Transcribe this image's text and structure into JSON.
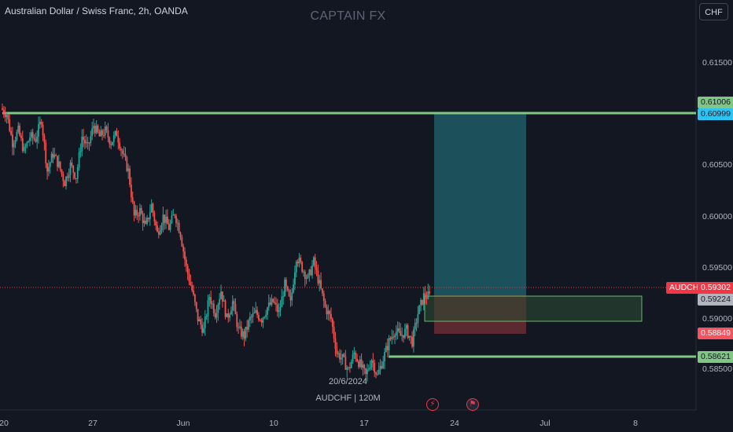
{
  "header": {
    "symbol_title": "Australian Dollar / Swiss Franc, 2h, OANDA",
    "watermark": "CAPTAIN FX",
    "currency_button": "CHF"
  },
  "price_axis": {
    "labels": [
      "0.61500",
      "0.60500",
      "0.60000",
      "0.59500",
      "0.59000",
      "0.58500"
    ],
    "values": [
      0.615,
      0.605,
      0.6,
      0.595,
      0.59,
      0.585
    ]
  },
  "price_tags": {
    "top_line_upper": "0.61006",
    "top_line_lower": "0.60999",
    "symbol": "AUDCHF",
    "last_price": "0.59302",
    "entry": "0.59224",
    "stop": "0.58849",
    "bottom_line": "0.58621"
  },
  "price_tag_values": {
    "top_line_upper": 0.61006,
    "top_line_lower": 0.60999,
    "last_price": 0.59302,
    "entry": 0.59224,
    "stop": 0.58849,
    "bottom_line": 0.58621
  },
  "time_axis": {
    "labels": [
      "20",
      "27",
      "Jun",
      "10",
      "17",
      "24",
      "Jul",
      "8"
    ]
  },
  "cursor_info": {
    "date": "20/6/2024",
    "symbol_interval": "AUDCHF | 120M"
  },
  "events": {
    "icons": [
      "lightning-icon",
      "flag-icon"
    ]
  },
  "colors": {
    "background": "#131722",
    "bull": "#26a69a",
    "bear": "#ef5350",
    "line": "#81c784",
    "target_zone": "#1f5a64",
    "stop_zone": "#6a2d33",
    "last_price": "#f23645",
    "axis_tag_blue": "#2ec4f2"
  },
  "chart_data": {
    "type": "candlestick",
    "title": "Australian Dollar / Swiss Franc, 2h, OANDA",
    "ylim": [
      0.5835,
      0.6195
    ],
    "x_ticks": [
      "20",
      "27",
      "Jun",
      "10",
      "17",
      "24",
      "Jul",
      "8"
    ],
    "horizontal_lines": [
      0.61006,
      0.58621
    ],
    "rectangles": [
      {
        "name": "target",
        "y": [
          0.59224,
          0.61006
        ]
      },
      {
        "name": "stop",
        "y": [
          0.58849,
          0.59224
        ]
      },
      {
        "name": "box",
        "y": [
          0.5897,
          0.5922
        ]
      }
    ],
    "path": [
      0.61,
      0.6095,
      0.607,
      0.608,
      0.6062,
      0.6075,
      0.6073,
      0.609,
      0.6045,
      0.606,
      0.605,
      0.6035,
      0.605,
      0.604,
      0.6075,
      0.6065,
      0.6085,
      0.6075,
      0.608,
      0.607,
      0.6078,
      0.606,
      0.6045,
      0.6005,
      0.601,
      0.5995,
      0.6015,
      0.599,
      0.6005,
      0.5995,
      0.6008,
      0.599,
      0.596,
      0.594,
      0.5915,
      0.5905,
      0.5935,
      0.592,
      0.594,
      0.5915,
      0.593,
      0.5905,
      0.59,
      0.5915,
      0.592,
      0.5915,
      0.5925,
      0.593,
      0.592,
      0.5945,
      0.5928,
      0.597,
      0.596,
      0.595,
      0.5965,
      0.5945,
      0.5925,
      0.5915,
      0.5885,
      0.588,
      0.587,
      0.5885,
      0.5875,
      0.5865,
      0.588,
      0.5865,
      0.588,
      0.5895,
      0.5905,
      0.59,
      0.5905,
      0.5895,
      0.592,
      0.5935,
      0.5935
    ]
  }
}
